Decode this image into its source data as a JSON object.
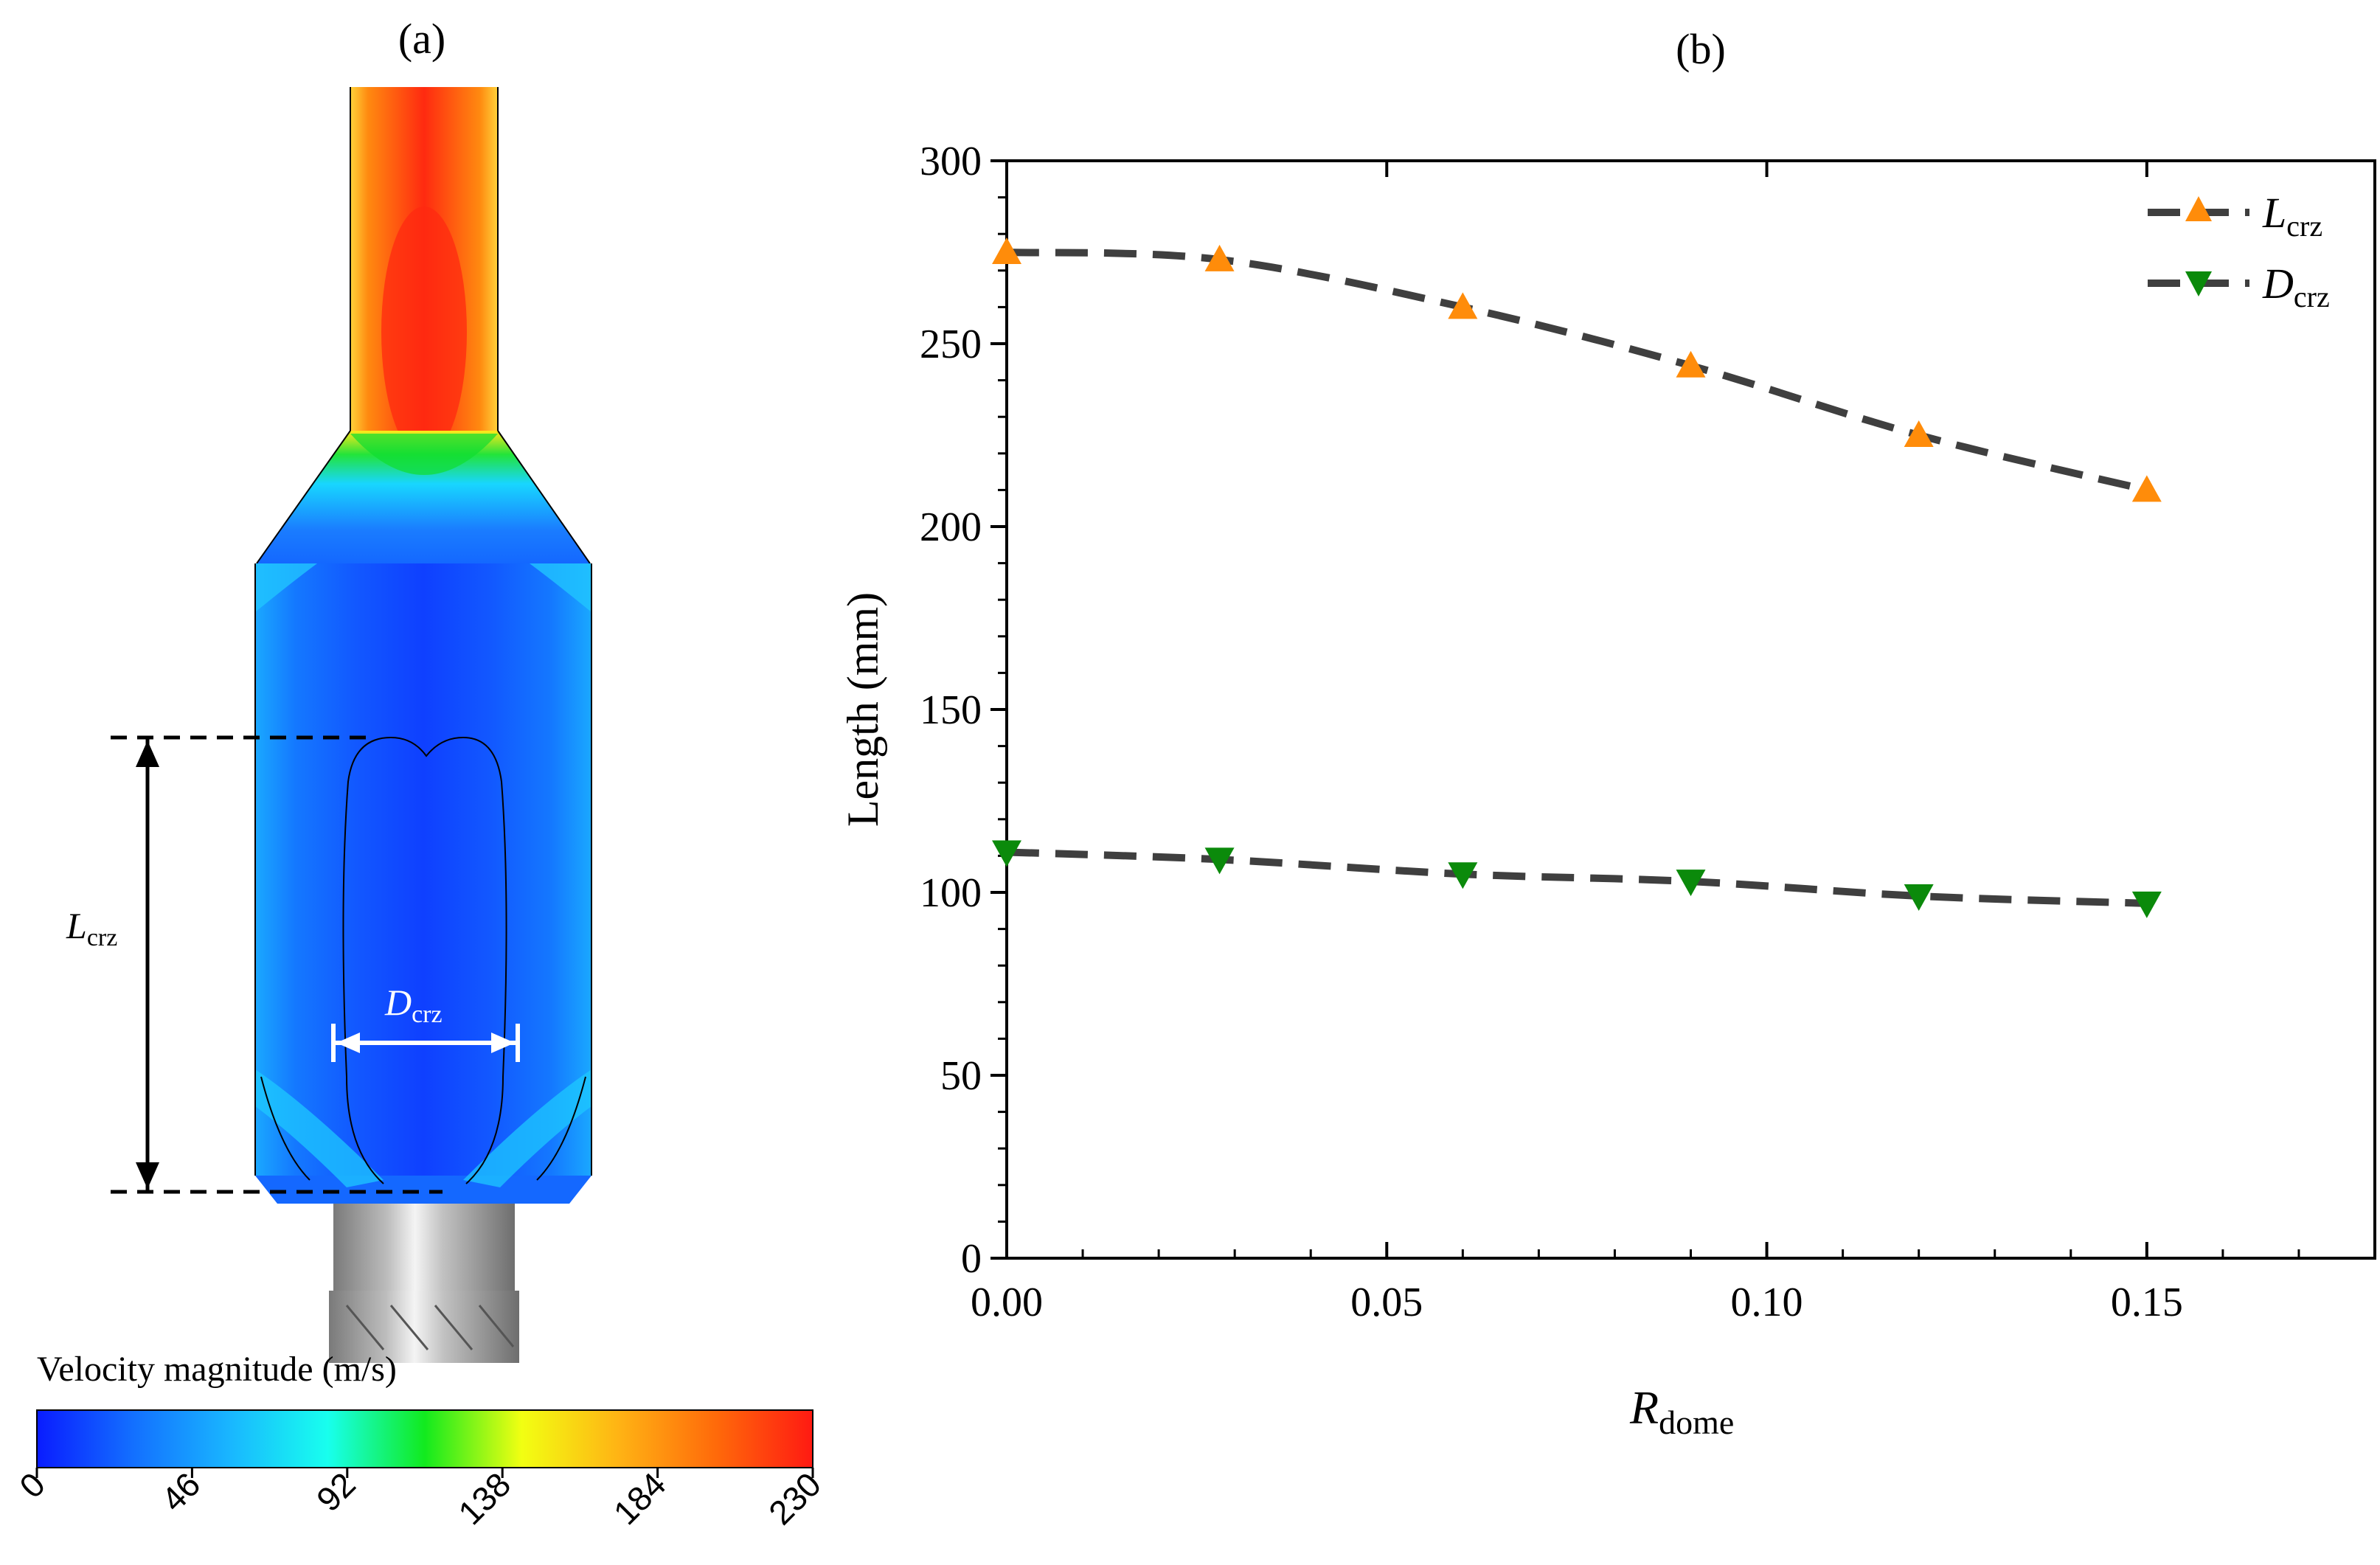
{
  "panel_a": {
    "label": "(a)",
    "dim_length": {
      "main": "L",
      "sub": "crz"
    },
    "dim_diameter": {
      "main": "D",
      "sub": "crz"
    },
    "colorbar": {
      "title": "Velocity magnitude (m/s)",
      "ticks": [
        "0",
        "46",
        "92",
        "138",
        "184",
        "230"
      ],
      "colors": [
        "#0a1cff",
        "#1370ff",
        "#19b7ff",
        "#18ffee",
        "#12ea1e",
        "#f2ff12",
        "#ffb314",
        "#ff6a0a",
        "#ff1a12"
      ]
    }
  },
  "chart_data": {
    "type": "line",
    "panel_label": "(b)",
    "xlabel": {
      "main": "R",
      "sub": "dome"
    },
    "ylabel": "Length (mm)",
    "xlim": [
      0,
      0.18
    ],
    "ylim": [
      0,
      300
    ],
    "x_ticks": [
      "0.00",
      "0.05",
      "0.10",
      "0.15"
    ],
    "y_ticks": [
      "0",
      "50",
      "100",
      "150",
      "200",
      "250",
      "300"
    ],
    "legend_position": "top-right",
    "series": [
      {
        "name": {
          "main": "L",
          "sub": "crz"
        },
        "marker": "triangle-up",
        "color": "#ff8c0a",
        "line_color": "#3f3f3f",
        "x": [
          0.0,
          0.028,
          0.06,
          0.09,
          0.12,
          0.15
        ],
        "y": [
          275,
          273,
          260,
          244,
          225,
          210
        ]
      },
      {
        "name": {
          "main": "D",
          "sub": "crz"
        },
        "marker": "triangle-down",
        "color": "#0b8a0b",
        "line_color": "#3f3f3f",
        "x": [
          0.0,
          0.028,
          0.06,
          0.09,
          0.12,
          0.15
        ],
        "y": [
          111,
          109,
          105,
          103,
          99,
          97
        ]
      }
    ]
  }
}
